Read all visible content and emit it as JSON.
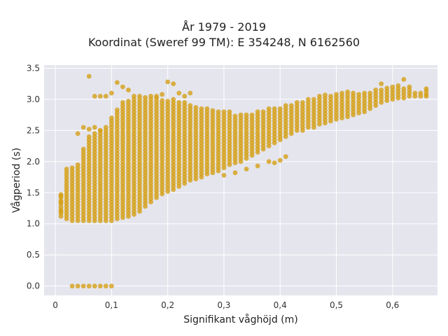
{
  "chart_data": {
    "type": "scatter",
    "title_lines": [
      "År 1979 - 2019",
      "Koordinat (Sweref 99 TM): E 354248, N 6162560"
    ],
    "xlabel": "Signifikant våghöjd (m)",
    "ylabel": "Vågperiod (s)",
    "xlim": [
      -0.02,
      0.68
    ],
    "ylim": [
      -0.15,
      3.55
    ],
    "x_ticks": [
      0,
      0.1,
      0.2,
      0.3,
      0.4,
      0.5,
      0.6
    ],
    "x_tick_labels": [
      "0",
      "0,1",
      "0,2",
      "0,3",
      "0,4",
      "0,5",
      "0,6"
    ],
    "y_ticks": [
      0,
      0.5,
      1.0,
      1.5,
      2.0,
      2.5,
      3.0,
      3.5
    ],
    "y_tick_labels": [
      "0.0",
      "0.5",
      "1.0",
      "1.5",
      "2.0",
      "2.5",
      "3.0",
      "3.5"
    ],
    "grid": true,
    "background": "#e5e5ee",
    "marker_color": "#d4a017",
    "series": [
      {
        "band_columns": [
          [
            0.01,
            1.12,
            1.48
          ],
          [
            0.02,
            1.08,
            1.92
          ],
          [
            0.03,
            1.05,
            1.92
          ],
          [
            0.04,
            1.05,
            1.95
          ],
          [
            0.05,
            1.05,
            2.2
          ],
          [
            0.06,
            1.05,
            2.4
          ],
          [
            0.07,
            1.05,
            2.45
          ],
          [
            0.08,
            1.05,
            2.5
          ],
          [
            0.09,
            1.05,
            2.55
          ],
          [
            0.1,
            1.05,
            2.7
          ],
          [
            0.11,
            1.08,
            2.85
          ],
          [
            0.12,
            1.1,
            2.95
          ],
          [
            0.13,
            1.12,
            3.0
          ],
          [
            0.14,
            1.15,
            3.05
          ],
          [
            0.15,
            1.2,
            3.05
          ],
          [
            0.16,
            1.28,
            3.05
          ],
          [
            0.17,
            1.35,
            3.05
          ],
          [
            0.18,
            1.42,
            3.05
          ],
          [
            0.19,
            1.48,
            3.0
          ],
          [
            0.2,
            1.52,
            3.0
          ],
          [
            0.21,
            1.55,
            3.0
          ],
          [
            0.22,
            1.6,
            2.95
          ],
          [
            0.23,
            1.65,
            2.95
          ],
          [
            0.24,
            1.7,
            2.9
          ],
          [
            0.25,
            1.72,
            2.9
          ],
          [
            0.26,
            1.75,
            2.85
          ],
          [
            0.27,
            1.8,
            2.85
          ],
          [
            0.28,
            1.82,
            2.85
          ],
          [
            0.29,
            1.85,
            2.8
          ],
          [
            0.3,
            1.9,
            2.8
          ],
          [
            0.31,
            1.95,
            2.8
          ],
          [
            0.32,
            1.98,
            2.75
          ],
          [
            0.33,
            2.0,
            2.75
          ],
          [
            0.34,
            2.05,
            2.75
          ],
          [
            0.35,
            2.1,
            2.75
          ],
          [
            0.36,
            2.15,
            2.8
          ],
          [
            0.37,
            2.2,
            2.82
          ],
          [
            0.38,
            2.25,
            2.85
          ],
          [
            0.39,
            2.3,
            2.85
          ],
          [
            0.4,
            2.35,
            2.88
          ],
          [
            0.41,
            2.4,
            2.9
          ],
          [
            0.42,
            2.45,
            2.92
          ],
          [
            0.43,
            2.5,
            2.95
          ],
          [
            0.44,
            2.5,
            2.98
          ],
          [
            0.45,
            2.55,
            3.0
          ],
          [
            0.46,
            2.55,
            3.02
          ],
          [
            0.47,
            2.6,
            3.05
          ],
          [
            0.48,
            2.62,
            3.08
          ],
          [
            0.49,
            2.65,
            3.08
          ],
          [
            0.5,
            2.68,
            3.1
          ],
          [
            0.51,
            2.7,
            3.12
          ],
          [
            0.52,
            2.72,
            3.12
          ],
          [
            0.53,
            2.75,
            3.1
          ],
          [
            0.54,
            2.78,
            3.1
          ],
          [
            0.55,
            2.8,
            3.1
          ],
          [
            0.56,
            2.85,
            3.12
          ],
          [
            0.57,
            2.9,
            3.15
          ],
          [
            0.58,
            2.95,
            3.18
          ],
          [
            0.59,
            2.98,
            3.2
          ],
          [
            0.6,
            3.0,
            3.2
          ],
          [
            0.61,
            3.02,
            3.22
          ],
          [
            0.62,
            3.02,
            3.2
          ],
          [
            0.63,
            3.05,
            3.15
          ],
          [
            0.64,
            3.05,
            3.1
          ],
          [
            0.65,
            3.05,
            3.12
          ],
          [
            0.66,
            3.08,
            3.15
          ]
        ],
        "points": [
          [
            0.03,
            0.0
          ],
          [
            0.04,
            0.0
          ],
          [
            0.05,
            0.0
          ],
          [
            0.06,
            0.0
          ],
          [
            0.07,
            0.0
          ],
          [
            0.08,
            0.0
          ],
          [
            0.09,
            0.0
          ],
          [
            0.1,
            0.0
          ],
          [
            0.06,
            3.37
          ],
          [
            0.07,
            3.05
          ],
          [
            0.08,
            3.05
          ],
          [
            0.09,
            3.05
          ],
          [
            0.1,
            3.1
          ],
          [
            0.11,
            3.27
          ],
          [
            0.12,
            3.2
          ],
          [
            0.13,
            3.15
          ],
          [
            0.18,
            3.05
          ],
          [
            0.19,
            3.08
          ],
          [
            0.2,
            3.28
          ],
          [
            0.21,
            3.25
          ],
          [
            0.22,
            3.1
          ],
          [
            0.23,
            3.05
          ],
          [
            0.24,
            3.1
          ],
          [
            0.04,
            2.45
          ],
          [
            0.05,
            2.55
          ],
          [
            0.06,
            2.52
          ],
          [
            0.07,
            2.55
          ],
          [
            0.08,
            2.5
          ],
          [
            0.38,
            2.0
          ],
          [
            0.39,
            1.98
          ],
          [
            0.4,
            2.02
          ],
          [
            0.41,
            2.08
          ],
          [
            0.3,
            1.78
          ],
          [
            0.32,
            1.82
          ],
          [
            0.34,
            1.88
          ],
          [
            0.36,
            1.93
          ],
          [
            0.58,
            3.25
          ],
          [
            0.62,
            3.32
          ],
          [
            0.63,
            3.2
          ],
          [
            0.66,
            3.17
          ],
          [
            0.66,
            3.05
          ],
          [
            0.01,
            1.35
          ],
          [
            0.01,
            1.2
          ],
          [
            0.01,
            1.45
          ]
        ]
      }
    ]
  }
}
